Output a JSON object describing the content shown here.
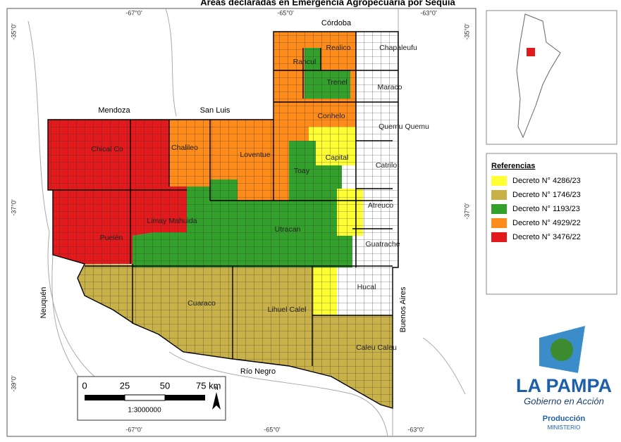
{
  "title": "Áreas declaradas en Emergencia Agropecuaria por Sequía",
  "graticule": {
    "top": [
      "-67°0'",
      "-65°0'",
      "-63°0'"
    ],
    "bottom": [
      "-67°0'",
      "-65°0'",
      "-63°0'"
    ],
    "left": [
      "-35°0'",
      "-37°0'",
      "-39°0'"
    ],
    "right": [
      "-35°0'",
      "-37°0'"
    ]
  },
  "neighbors": [
    "Córdoba",
    "Mendoza",
    "San Luis",
    "Neuquén",
    "Río Negro",
    "Buenos Aires"
  ],
  "departments": [
    "Chical Co",
    "Chalileo",
    "Loventue",
    "Rancul",
    "Realico",
    "Chapaleufu",
    "Trenel",
    "Maraco",
    "Conhelo",
    "Quemu Quemu",
    "Capital",
    "Catrilo",
    "Toay",
    "Atreuco",
    "Limay Mahuida",
    "Puelén",
    "Utracan",
    "Guatrache",
    "Hucal",
    "Cuaraco",
    "Lihuel Calel",
    "Caleu Caleu"
  ],
  "legend": {
    "title": "Referencias",
    "items": [
      {
        "label": "Decreto N° 4286/23",
        "color": "#ffff33"
      },
      {
        "label": "Decreto N° 1746/23",
        "color": "#c9b14a"
      },
      {
        "label": "Decreto N° 1193/23",
        "color": "#33a02c"
      },
      {
        "label": "Decreto N° 4929/22",
        "color": "#ff8c1a"
      },
      {
        "label": "Decreto N° 3476/22",
        "color": "#e31a1c"
      }
    ]
  },
  "scale_bar": {
    "labels": [
      "0",
      "25",
      "50",
      "75 km"
    ],
    "ratio": "1:3000000",
    "north": "N"
  },
  "logo": {
    "name": "LA PAMPA",
    "slogan": "Gobierno en Acción",
    "area": "Producción",
    "ministry": "MINISTERIO"
  }
}
